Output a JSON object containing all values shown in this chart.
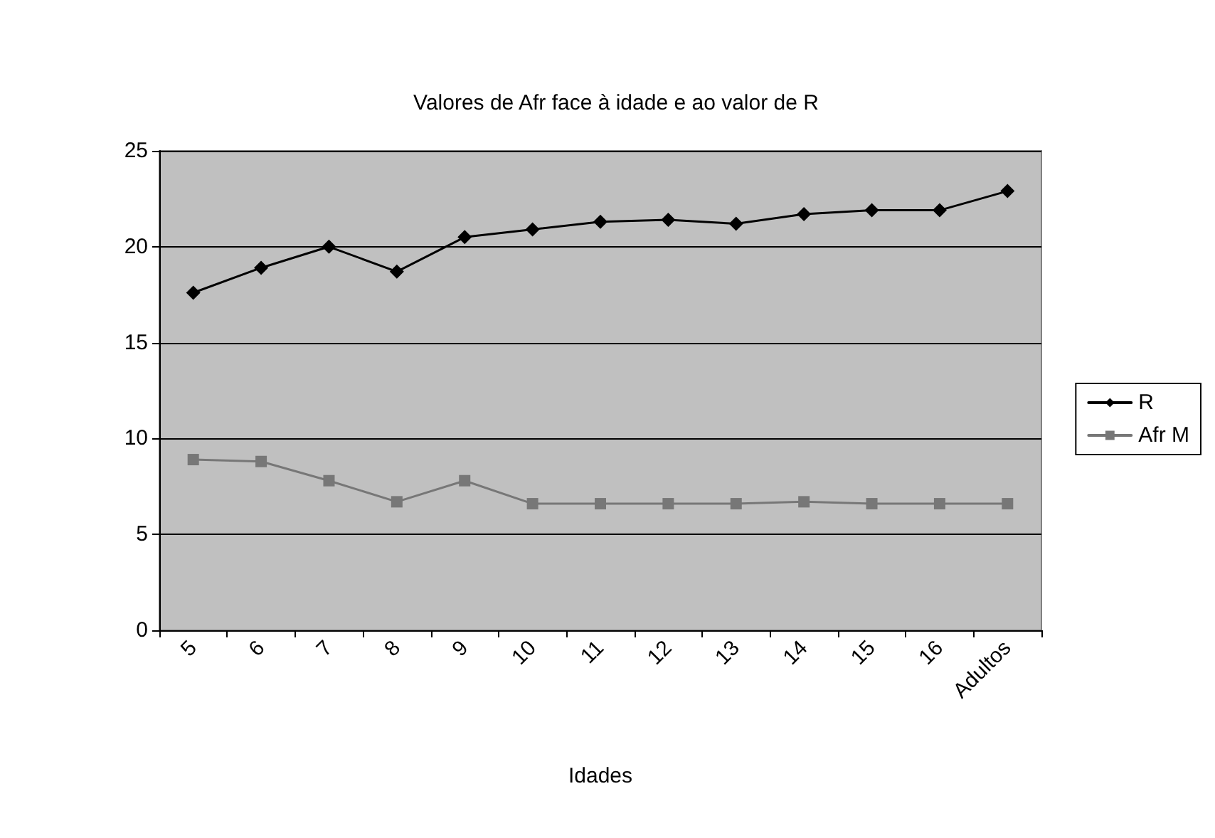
{
  "chart_data": {
    "type": "line",
    "title": "Valores de Afr face à idade e ao valor de R",
    "xlabel": "Idades",
    "categories": [
      "5",
      "6",
      "7",
      "8",
      "9",
      "10",
      "11",
      "12",
      "13",
      "14",
      "15",
      "16",
      "Adultos"
    ],
    "series": [
      {
        "name": "R",
        "color": "#000000",
        "marker": "diamond",
        "values": [
          17.6,
          18.9,
          20.0,
          18.7,
          20.5,
          20.9,
          21.3,
          21.4,
          21.2,
          21.7,
          21.9,
          21.9,
          22.9
        ]
      },
      {
        "name": "Afr M",
        "color": "#777777",
        "marker": "square",
        "values": [
          8.9,
          8.8,
          7.8,
          6.7,
          7.8,
          6.6,
          6.6,
          6.6,
          6.6,
          6.7,
          6.6,
          6.6,
          6.6
        ]
      }
    ],
    "ylim": [
      0,
      25
    ],
    "yticks": [
      0,
      5,
      10,
      15,
      20,
      25
    ],
    "grid": "y",
    "legend": "right"
  }
}
